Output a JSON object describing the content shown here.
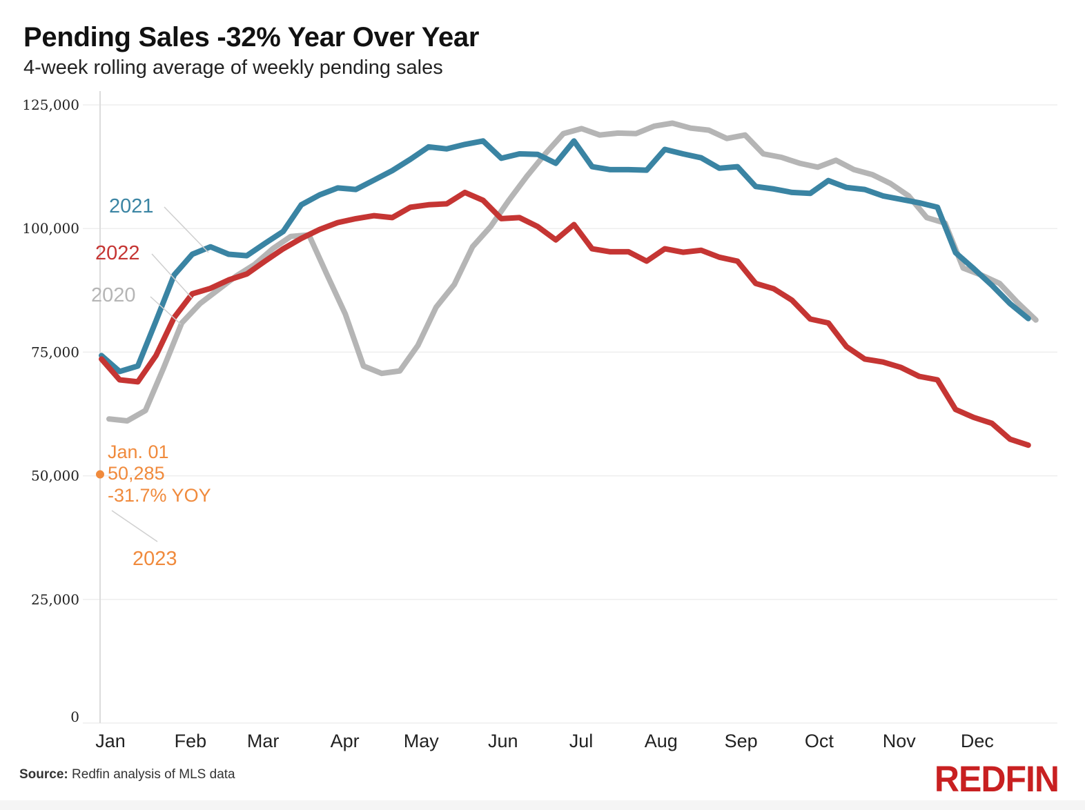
{
  "header": {
    "title": "Pending Sales -32% Year Over Year",
    "subtitle": "4-week rolling average of weekly pending sales"
  },
  "footer": {
    "source_label": "Source:",
    "source_text": "Redfin analysis of MLS data",
    "logo": "REDFIN"
  },
  "chart_data": {
    "type": "line",
    "title": "Pending Sales -32% Year Over Year",
    "subtitle": "4-week rolling average of weekly pending sales",
    "xlabel": "",
    "ylabel": "",
    "ylim": [
      0,
      125000
    ],
    "y_ticks": [
      0,
      25000,
      50000,
      75000,
      100000,
      125000
    ],
    "y_tick_labels": [
      "0",
      "25,000",
      "50,000",
      "75,000",
      "100,000",
      "125,000"
    ],
    "x_tick_labels": [
      "Jan",
      "Feb",
      "Mar",
      "Apr",
      "May",
      "Jun",
      "Jul",
      "Aug",
      "Sep",
      "Oct",
      "Nov",
      "Dec"
    ],
    "x_tick_weeks": [
      0,
      4.4,
      8.4,
      12.9,
      17.1,
      21.6,
      25.9,
      30.3,
      34.7,
      39,
      43.4,
      47.7
    ],
    "grid": "horizontal",
    "legend": "inline labels at left",
    "x_unit": "week of year",
    "series": [
      {
        "name": "2020",
        "color": "#b5b5b5",
        "values": [
          61500,
          61100,
          63200,
          71800,
          80900,
          84800,
          87600,
          90400,
          92700,
          95900,
          98400,
          98700,
          90600,
          82700,
          72200,
          70700,
          71200,
          76400,
          84100,
          88700,
          96300,
          100400,
          105700,
          110600,
          115100,
          119200,
          120200,
          118900,
          119300,
          119200,
          120700,
          121300,
          120300,
          119900,
          118200,
          118900,
          115100,
          114400,
          113200,
          112400,
          113800,
          111900,
          110900,
          109100,
          106600,
          102200,
          101100,
          92000,
          90600,
          88900,
          85000,
          81500
        ]
      },
      {
        "name": "2021",
        "color": "#3a84a3",
        "values": [
          74300,
          71100,
          72200,
          81300,
          90600,
          94800,
          96300,
          94800,
          94500,
          97000,
          99400,
          104800,
          106800,
          108200,
          107900,
          109800,
          111700,
          114000,
          116500,
          116100,
          117000,
          117700,
          114200,
          115100,
          115000,
          113200,
          117700,
          112500,
          111900,
          111900,
          111800,
          116000,
          115100,
          114300,
          112200,
          112500,
          108500,
          108000,
          107300,
          107100,
          109700,
          108300,
          107900,
          106600,
          105900,
          105200,
          104300,
          95100,
          91900,
          88500,
          84800,
          81800
        ]
      },
      {
        "name": "2022",
        "color": "#c53533",
        "values": [
          73600,
          69400,
          69000,
          74300,
          82000,
          86800,
          87900,
          89600,
          90800,
          93400,
          95900,
          98000,
          99800,
          101200,
          102000,
          102600,
          102200,
          104300,
          104800,
          105000,
          107300,
          105700,
          102000,
          102200,
          100400,
          97700,
          100800,
          95900,
          95300,
          95300,
          93400,
          95900,
          95200,
          95600,
          94200,
          93400,
          88900,
          87800,
          85500,
          81700,
          80900,
          76100,
          73600,
          73000,
          71900,
          70100,
          69400,
          63400,
          61800,
          60600,
          57400,
          56200
        ]
      },
      {
        "name": "2023",
        "color": "#f08a3c",
        "values": [
          50285
        ]
      }
    ],
    "annotation": {
      "date": "Jan. 01",
      "value": "50,285",
      "change": "-31.7% YOY",
      "series": "2023"
    }
  }
}
